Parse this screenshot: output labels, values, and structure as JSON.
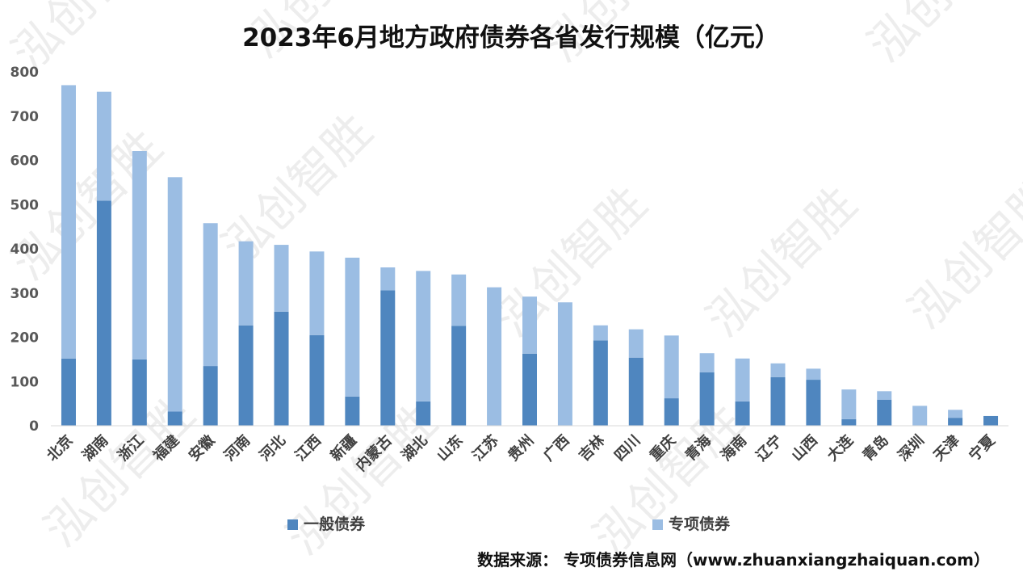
{
  "chart_data": {
    "type": "bar",
    "stacked": true,
    "title": "2023年6月地方政府债券各省发行规模（亿元）",
    "categories": [
      "北京",
      "湖南",
      "浙江",
      "福建",
      "安徽",
      "河南",
      "河北",
      "江西",
      "新疆",
      "内蒙古",
      "湖北",
      "山东",
      "江苏",
      "贵州",
      "广西",
      "吉林",
      "四川",
      "重庆",
      "青海",
      "海南",
      "辽宁",
      "山西",
      "大连",
      "青岛",
      "深圳",
      "天津",
      "宁夏"
    ],
    "series": [
      {
        "name": "一般债券",
        "color": "#4f86bf",
        "values": [
          152,
          509,
          150,
          32,
          135,
          227,
          258,
          205,
          66,
          306,
          55,
          226,
          0,
          163,
          0,
          193,
          154,
          62,
          121,
          55,
          110,
          104,
          15,
          59,
          0,
          18,
          22
        ]
      },
      {
        "name": "专项债券",
        "color": "#9bbde3",
        "values": [
          618,
          246,
          471,
          530,
          323,
          190,
          151,
          189,
          314,
          52,
          295,
          116,
          313,
          129,
          279,
          34,
          64,
          142,
          43,
          97,
          31,
          25,
          67,
          19,
          45,
          18,
          0
        ]
      }
    ],
    "ylim": [
      0,
      800
    ],
    "yticks": [
      "0",
      "100",
      "200",
      "300",
      "400",
      "500",
      "600",
      "700",
      "800"
    ],
    "legend_position": "bottom",
    "grid": false
  },
  "source": "数据来源：  专项债券信息网（www.zhuanxiangzhaiquan.com）",
  "watermark": "泓创智胜"
}
